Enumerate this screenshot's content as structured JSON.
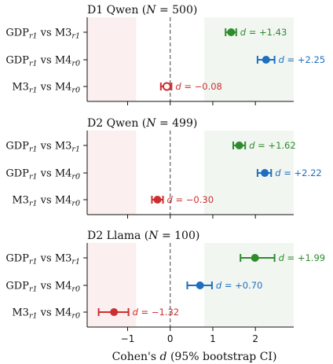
{
  "chart_data": {
    "type": "forest",
    "xlabel_prefix": "Cohen's ",
    "xlabel_var": "d",
    "xlabel_suffix": " (95% bootstrap CI)",
    "xlim": [
      -1.95,
      2.9
    ],
    "xticks": [
      -1,
      0,
      1,
      2
    ],
    "xtick_labels": [
      "−1",
      "0",
      "1",
      "2"
    ],
    "shade_left": [
      -1.95,
      -0.8
    ],
    "shade_right": [
      0.8,
      2.9
    ],
    "colors": {
      "green": "#2e8b2e",
      "blue": "#1f6fc0",
      "red": "#cc2f2f",
      "shade_left": "#fbeff0",
      "shade_right": "#f2f6f1"
    },
    "panels": [
      {
        "title_prefix": "D1 Qwen (",
        "title_n_var": "N",
        "title_n_text": " = 500)",
        "rows": [
          {
            "label_a": "GDP",
            "sub_a": "r1",
            "label_vs": " vs ",
            "label_b": "M3",
            "sub_b": "r1",
            "d": 1.43,
            "ci": [
              1.3,
              1.55
            ],
            "color": "green",
            "hollow": false,
            "d_text": " = +1.43"
          },
          {
            "label_a": "GDP",
            "sub_a": "r1",
            "label_vs": " vs ",
            "label_b": "M4",
            "sub_b": "r0",
            "d": 2.25,
            "ci": [
              2.05,
              2.45
            ],
            "color": "blue",
            "hollow": false,
            "d_text": " = +2.25"
          },
          {
            "label_a": "M3",
            "sub_a": "r1",
            "label_vs": " vs ",
            "label_b": "M4",
            "sub_b": "r0",
            "d": -0.08,
            "ci": [
              -0.22,
              0.03
            ],
            "color": "red",
            "hollow": true,
            "d_text": " = −0.08"
          }
        ]
      },
      {
        "title_prefix": "D2 Qwen (",
        "title_n_var": "N",
        "title_n_text": " = 499)",
        "rows": [
          {
            "label_a": "GDP",
            "sub_a": "r1",
            "label_vs": " vs ",
            "label_b": "M3",
            "sub_b": "r1",
            "d": 1.62,
            "ci": [
              1.48,
              1.76
            ],
            "color": "green",
            "hollow": false,
            "d_text": " = +1.62"
          },
          {
            "label_a": "GDP",
            "sub_a": "r1",
            "label_vs": " vs ",
            "label_b": "M4",
            "sub_b": "r0",
            "d": 2.22,
            "ci": [
              2.05,
              2.37
            ],
            "color": "blue",
            "hollow": false,
            "d_text": " = +2.22"
          },
          {
            "label_a": "M3",
            "sub_a": "r1",
            "label_vs": " vs ",
            "label_b": "M4",
            "sub_b": "r0",
            "d": -0.3,
            "ci": [
              -0.43,
              -0.17
            ],
            "color": "red",
            "hollow": false,
            "d_text": " = −0.30"
          }
        ]
      },
      {
        "title_prefix": "D2 Llama (",
        "title_n_var": "N",
        "title_n_text": " = 100)",
        "rows": [
          {
            "label_a": "GDP",
            "sub_a": "r1",
            "label_vs": " vs ",
            "label_b": "M3",
            "sub_b": "r1",
            "d": 1.99,
            "ci": [
              1.65,
              2.45
            ],
            "color": "green",
            "hollow": false,
            "d_text": " = +1.99"
          },
          {
            "label_a": "GDP",
            "sub_a": "r1",
            "label_vs": " vs ",
            "label_b": "M4",
            "sub_b": "r0",
            "d": 0.7,
            "ci": [
              0.4,
              0.98
            ],
            "color": "blue",
            "hollow": false,
            "d_text": " = +0.70"
          },
          {
            "label_a": "M3",
            "sub_a": "r1",
            "label_vs": " vs ",
            "label_b": "M4",
            "sub_b": "r0",
            "d": -1.32,
            "ci": [
              -1.68,
              -0.98
            ],
            "color": "red",
            "hollow": false,
            "d_text": " = −1.32"
          }
        ]
      }
    ]
  }
}
